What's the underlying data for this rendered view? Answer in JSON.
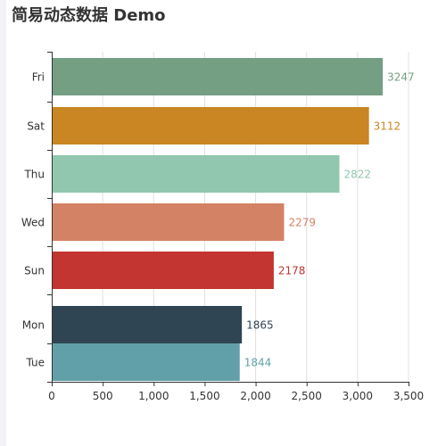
{
  "chart_data": {
    "type": "bar",
    "orientation": "horizontal",
    "title": "简易动态数据 Demo",
    "categories": [
      "Fri",
      "Sat",
      "Thu",
      "Wed",
      "Sun",
      "Mon",
      "Tue"
    ],
    "values": [
      3247,
      3112,
      2822,
      2279,
      2178,
      1865,
      1844
    ],
    "colors": [
      "#749f83",
      "#ca8622",
      "#91c7ae",
      "#d48265",
      "#c23531",
      "#2f4554",
      "#61a0a8"
    ],
    "xlim": [
      0,
      3500
    ],
    "x_ticks": [
      0,
      500,
      1000,
      1500,
      2000,
      2500,
      3000,
      3500
    ],
    "x_tick_labels": [
      "0",
      "500",
      "1,000",
      "1,500",
      "2,000",
      "2,500",
      "3,000",
      "3,500"
    ],
    "grid": "vertical",
    "data_labels": "right"
  }
}
